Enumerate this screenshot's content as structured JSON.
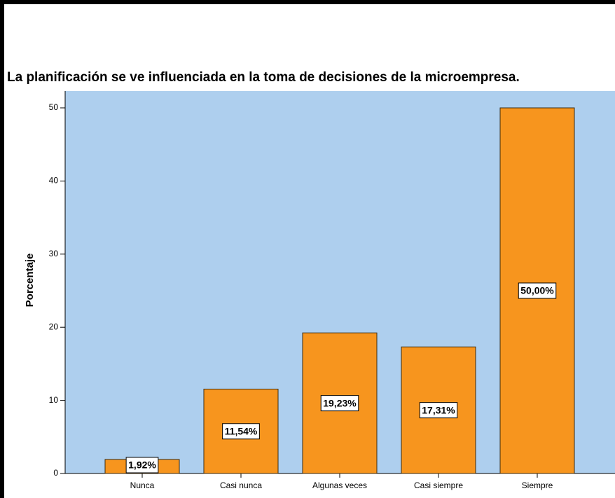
{
  "chart_data": {
    "type": "bar",
    "title": "La planificación  se ve influenciada en la toma de decisiones de la microempresa.",
    "y_label": "Porcentaje",
    "categories": [
      "Nunca",
      "Casi nunca",
      "Algunas veces",
      "Casi siempre",
      "Siempre"
    ],
    "values": [
      1.92,
      11.54,
      19.23,
      17.31,
      50
    ],
    "value_labels": [
      "1,92%",
      "11,54%",
      "19,23%",
      "17,31%",
      "50,00%"
    ],
    "color": "#f7951e",
    "ylim": [
      0,
      52.3
    ],
    "yticks": [
      0,
      10,
      20,
      30,
      40,
      50
    ]
  }
}
